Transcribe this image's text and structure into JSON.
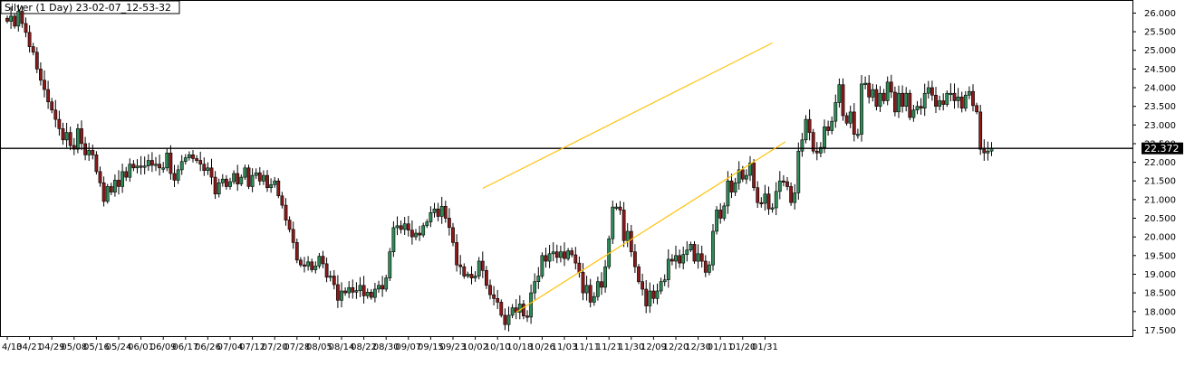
{
  "chart_data": {
    "type": "candlestick",
    "title": "Silver (1 Day) 23-02-07_12-53-32",
    "xlabel": "",
    "ylabel": "",
    "ylim": [
      17.34,
      26.35
    ],
    "y_ticks": [
      "26.000",
      "25.500",
      "25.000",
      "24.500",
      "24.000",
      "23.500",
      "23.000",
      "22.500",
      "22.000",
      "21.500",
      "21.000",
      "20.500",
      "20.000",
      "19.500",
      "19.000",
      "18.500",
      "18.000",
      "17.500"
    ],
    "x_ticks": [
      "4/13",
      "04/21",
      "04/29",
      "05/08",
      "05/16",
      "05/24",
      "06/01",
      "06/09",
      "06/17",
      "06/26",
      "07/04",
      "07/12",
      "07/20",
      "07/28",
      "08/05",
      "08/14",
      "08/22",
      "08/30",
      "09/07",
      "09/15",
      "09/23",
      "10/02",
      "10/10",
      "10/18",
      "10/26",
      "11/03",
      "11/11",
      "11/21",
      "11/30",
      "12/09",
      "12/20",
      "12/30",
      "01/11",
      "01/20",
      "01/31"
    ],
    "x_tick_index": [
      0,
      6,
      12,
      18,
      24,
      30,
      36,
      42,
      48,
      54,
      60,
      66,
      72,
      78,
      84,
      90,
      96,
      102,
      108,
      114,
      120,
      126,
      132,
      138,
      144,
      150,
      156,
      162,
      168,
      174,
      180,
      186,
      192,
      198,
      204
    ],
    "current_price": {
      "value": 22.372,
      "label": "22.372"
    },
    "grid": false,
    "colors": {
      "up": "#2e8b57",
      "down": "#8b1a1a",
      "wick": "#000000",
      "channel": "#ffc20e",
      "price_line": "#000000",
      "label_bg": "#000000",
      "label_text": "#ffffff"
    },
    "channel": {
      "upper": {
        "start_index": 128,
        "start_value": 21.3,
        "end_index": 206,
        "end_value": 25.2
      },
      "lower": {
        "start_index": 137,
        "start_value": 17.98,
        "end_index": 209.5,
        "end_value": 22.55
      }
    },
    "closes": [
      25.78,
      25.92,
      25.65,
      26.05,
      25.72,
      25.48,
      25.1,
      24.95,
      24.5,
      24.2,
      23.95,
      23.62,
      23.4,
      23.15,
      22.9,
      22.6,
      22.8,
      22.45,
      22.35,
      22.9,
      22.5,
      22.2,
      22.32,
      22.2,
      21.75,
      21.45,
      20.95,
      21.35,
      21.2,
      21.52,
      21.35,
      21.75,
      21.6,
      21.95,
      21.85,
      21.9,
      21.88,
      21.9,
      22.05,
      21.92,
      21.95,
      21.85,
      21.85,
      22.25,
      21.7,
      21.52,
      21.8,
      22.02,
      22.12,
      22.2,
      22.1,
      22.05,
      21.95,
      21.78,
      21.85,
      21.6,
      21.15,
      21.45,
      21.55,
      21.35,
      21.48,
      21.7,
      21.42,
      21.6,
      21.85,
      21.35,
      21.65,
      21.72,
      21.5,
      21.65,
      21.32,
      21.4,
      21.5,
      21.1,
      20.85,
      20.45,
      20.2,
      19.85,
      19.38,
      19.25,
      19.22,
      19.33,
      19.12,
      19.22,
      19.48,
      19.28,
      18.92,
      18.95,
      18.72,
      18.3,
      18.55,
      18.5,
      18.64,
      18.52,
      18.56,
      18.7,
      18.42,
      18.52,
      18.38,
      18.6,
      18.7,
      18.6,
      18.9,
      19.6,
      20.25,
      20.3,
      20.2,
      20.35,
      20.18,
      20.0,
      20.1,
      20.05,
      20.3,
      20.4,
      20.65,
      20.75,
      20.55,
      20.82,
      20.5,
      20.25,
      19.85,
      19.25,
      19.2,
      18.95,
      19.0,
      18.9,
      18.95,
      19.35,
      19.1,
      18.7,
      18.45,
      18.35,
      18.25,
      17.9,
      17.65,
      17.9,
      18.1,
      17.98,
      18.2,
      17.88,
      17.85,
      18.5,
      18.8,
      18.95,
      19.5,
      19.35,
      19.55,
      19.6,
      19.45,
      19.6,
      19.42,
      19.63,
      19.52,
      19.3,
      19.05,
      18.5,
      18.7,
      18.25,
      18.4,
      18.8,
      18.65,
      19.2,
      19.95,
      20.8,
      20.8,
      20.72,
      19.9,
      20.15,
      19.6,
      19.2,
      18.8,
      18.6,
      18.15,
      18.55,
      18.35,
      18.55,
      18.8,
      18.85,
      19.4,
      19.35,
      19.5,
      19.3,
      19.53,
      19.65,
      19.8,
      19.35,
      19.55,
      19.35,
      19.05,
      19.25,
      20.15,
      20.72,
      20.5,
      20.83,
      21.5,
      21.2,
      21.45,
      21.8,
      21.55,
      21.65,
      21.98,
      21.32,
      20.92,
      20.9,
      21.15,
      20.75,
      20.78,
      21.22,
      21.5,
      21.48,
      21.35,
      20.92,
      21.18,
      22.3,
      22.6,
      23.15,
      22.8,
      22.3,
      22.25,
      22.4,
      22.95,
      22.85,
      23.1,
      23.6,
      24.08,
      23.25,
      23.05,
      23.35,
      22.75,
      22.75,
      24.1,
      24.12,
      23.75,
      23.95,
      23.5,
      23.85,
      23.65,
      24.15,
      23.88,
      23.35,
      23.85,
      23.5,
      23.85,
      23.2,
      23.4,
      23.5,
      23.45,
      23.85,
      24.0,
      23.8,
      23.5,
      23.65,
      23.55,
      23.85,
      23.85,
      23.65,
      23.75,
      23.45,
      23.8,
      23.9,
      23.52,
      23.35,
      22.35,
      22.25,
      22.3,
      22.372
    ]
  }
}
